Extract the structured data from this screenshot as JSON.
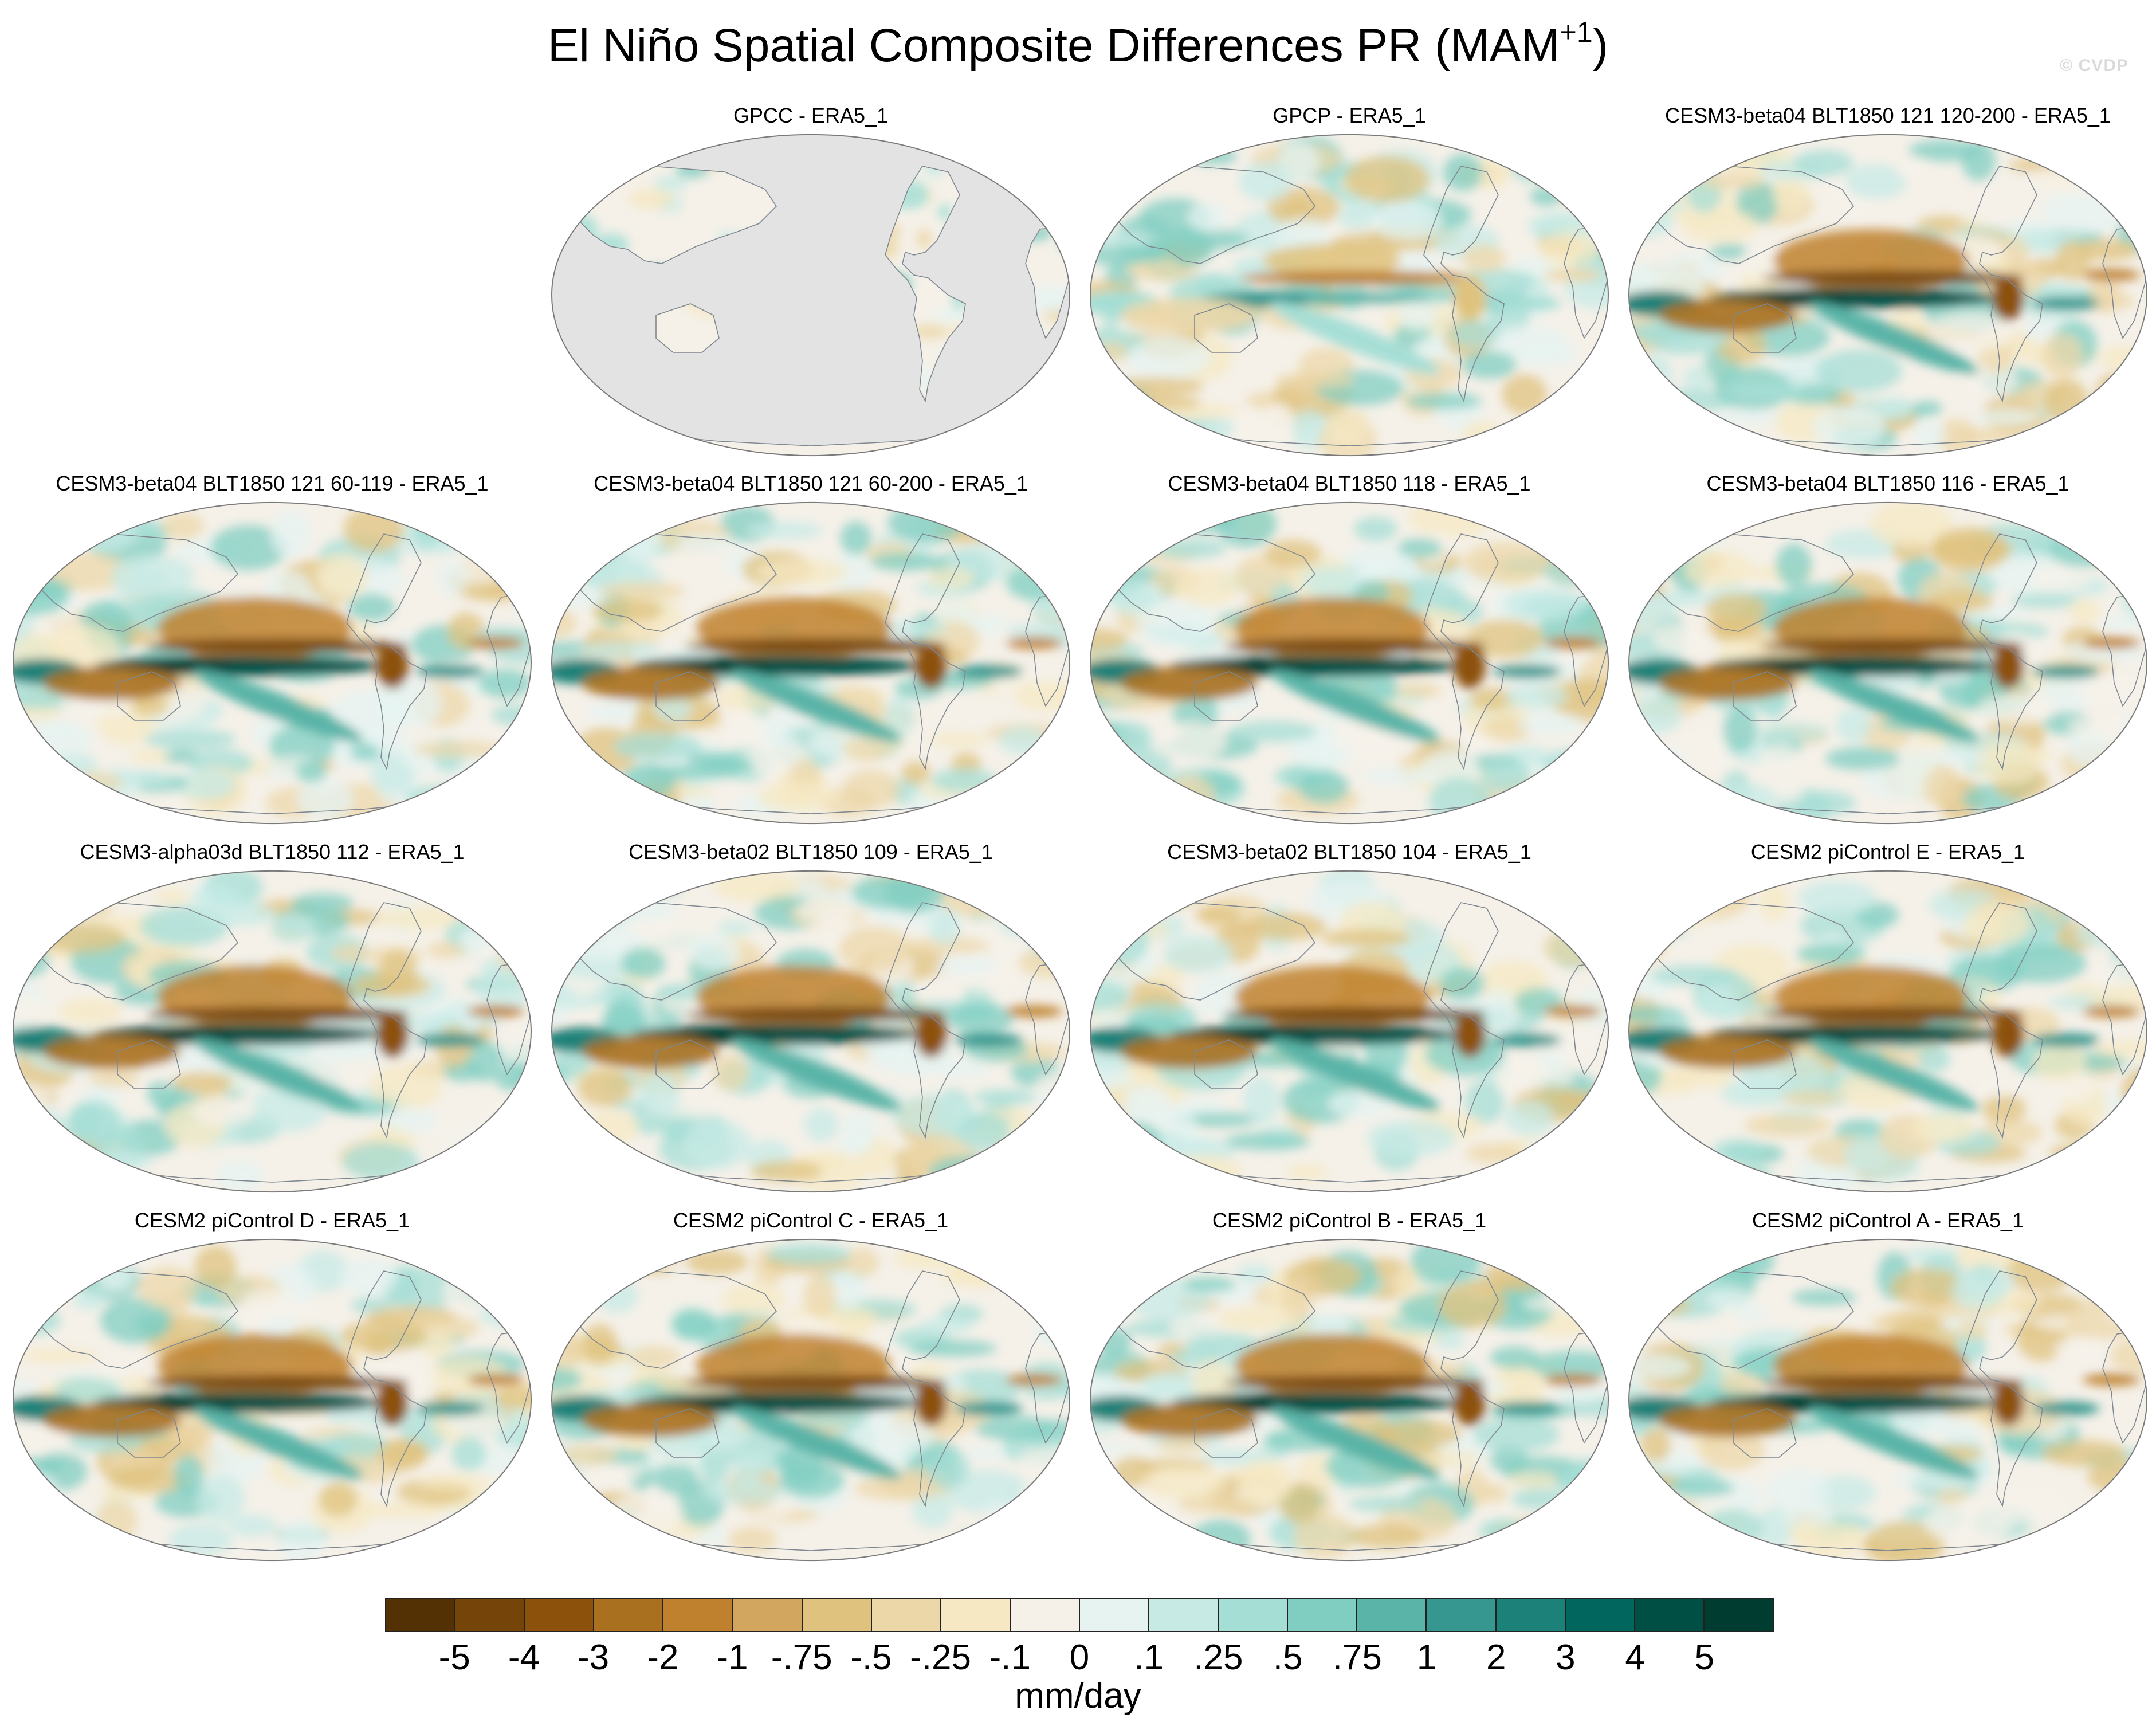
{
  "figure": {
    "title_main": "El Niño Spatial Composite Differences PR (MAM",
    "title_sup": "+1",
    "title_close": ")",
    "watermark": "© CVDP"
  },
  "panels": [
    {
      "title": "GPCC - ERA5_1",
      "variant": "gpcc"
    },
    {
      "title": "GPCP - ERA5_1",
      "variant": "obs"
    },
    {
      "title": "CESM3-beta04 BLT1850 121 120-200 - ERA5_1",
      "variant": "model"
    },
    {
      "title": "CESM3-beta04 BLT1850 121 60-119 - ERA5_1",
      "variant": "model"
    },
    {
      "title": "CESM3-beta04 BLT1850 121 60-200 - ERA5_1",
      "variant": "model"
    },
    {
      "title": "CESM3-beta04 BLT1850 118 - ERA5_1",
      "variant": "model"
    },
    {
      "title": "CESM3-beta04 BLT1850 116 - ERA5_1",
      "variant": "model"
    },
    {
      "title": "CESM3-alpha03d BLT1850 112 - ERA5_1",
      "variant": "model"
    },
    {
      "title": "CESM3-beta02 BLT1850 109 - ERA5_1",
      "variant": "model"
    },
    {
      "title": "CESM3-beta02 BLT1850 104 - ERA5_1",
      "variant": "model"
    },
    {
      "title": "CESM2 piControl E - ERA5_1",
      "variant": "model"
    },
    {
      "title": "CESM2 piControl D - ERA5_1",
      "variant": "model"
    },
    {
      "title": "CESM2 piControl C - ERA5_1",
      "variant": "model"
    },
    {
      "title": "CESM2 piControl B - ERA5_1",
      "variant": "model"
    },
    {
      "title": "CESM2 piControl A - ERA5_1",
      "variant": "model"
    }
  ],
  "colorbar": {
    "units": "mm/day",
    "colors": [
      "#543005",
      "#744409",
      "#8c510a",
      "#a9701f",
      "#bf812d",
      "#d2a65e",
      "#dfc27d",
      "#ecd7a9",
      "#f6e8c3",
      "#f5f1e9",
      "#e6f3f1",
      "#c7eae5",
      "#a5ded5",
      "#80cdc1",
      "#5ab4a7",
      "#35978f",
      "#1c8178",
      "#01665e",
      "#004f45",
      "#003c30"
    ],
    "labels": [
      "-5",
      "-4",
      "-3",
      "-2",
      "-1",
      "-.75",
      "-.5",
      "-.25",
      "-.1",
      "0",
      ".1",
      ".25",
      ".5",
      ".75",
      "1",
      "2",
      "3",
      "4",
      "5"
    ]
  }
}
